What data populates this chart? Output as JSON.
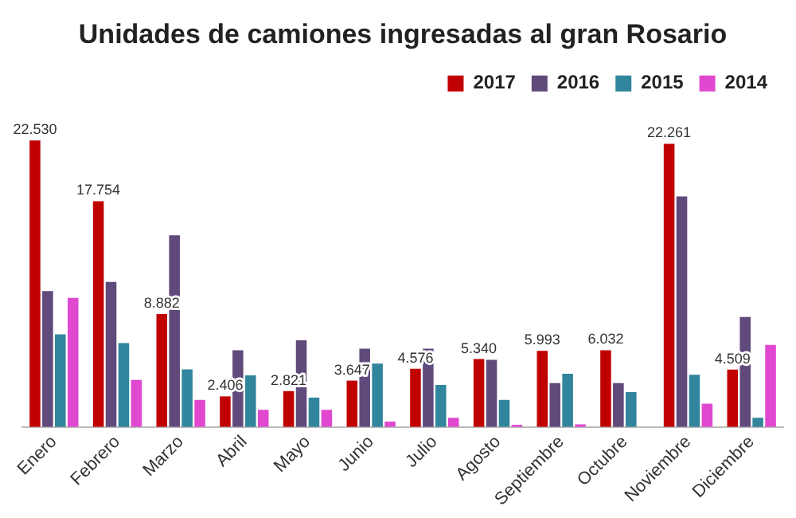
{
  "chart_data": {
    "type": "bar",
    "title": "Unidades de camiones ingresadas al gran Rosario",
    "categories": [
      "Enero",
      "Febrero",
      "Marzo",
      "Abril",
      "Mayo",
      "Junio",
      "Julio",
      "Agosto",
      "Septiembre",
      "Octubre",
      "Noviembre",
      "Diciembre"
    ],
    "series": [
      {
        "name": "2017",
        "color": "#c00000",
        "values": [
          22530,
          17754,
          8882,
          2406,
          2821,
          3647,
          4576,
          5340,
          5993,
          6032,
          22261,
          4509
        ],
        "value_labels": [
          "22.530",
          "17.754",
          "8.882",
          "2.406",
          "2.821",
          "3.647",
          "4.576",
          "5.340",
          "5.993",
          "6.032",
          "22.261",
          "4.509"
        ]
      },
      {
        "name": "2016",
        "color": "#604a7b",
        "values": [
          10690,
          11400,
          15070,
          6030,
          6810,
          6160,
          6160,
          5280,
          3450,
          3450,
          18120,
          8650
        ]
      },
      {
        "name": "2015",
        "color": "#31859c",
        "values": [
          7280,
          6590,
          4530,
          4060,
          2310,
          4980,
          3310,
          2130,
          4190,
          2750,
          4100,
          730
        ]
      },
      {
        "name": "2014",
        "color": "#e048d0",
        "values": [
          10160,
          3700,
          2130,
          1350,
          1350,
          430,
          730,
          170,
          200,
          null,
          1830,
          6460
        ]
      }
    ],
    "legend": "top right",
    "grid": false
  }
}
